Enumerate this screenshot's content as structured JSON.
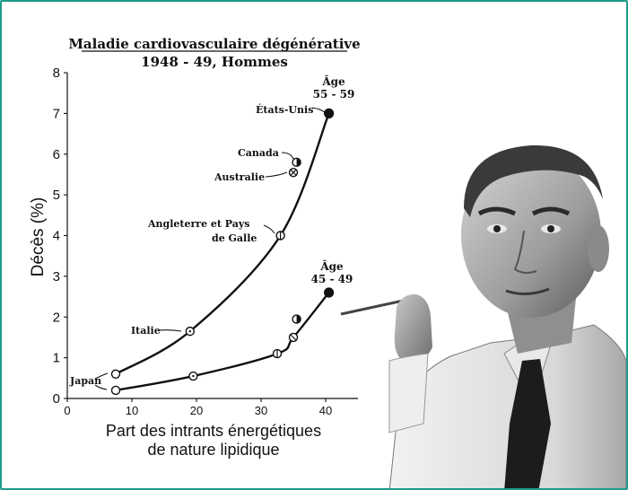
{
  "chart_data": {
    "type": "scatter",
    "title": "Maladie cardiovasculaire dégénérative",
    "subtitle": "1948 - 49, Hommes",
    "xlabel_line1": "Part des intrants énergétiques",
    "xlabel_line2": "de nature lipidique",
    "ylabel": "Décès (%)",
    "xlim": [
      0,
      45
    ],
    "ylim": [
      0,
      8
    ],
    "x_ticks": [
      "0",
      "10",
      "20",
      "30",
      "40"
    ],
    "y_ticks": [
      "0",
      "1",
      "2",
      "3",
      "4",
      "5",
      "6",
      "7",
      "8"
    ],
    "grid": false,
    "series": [
      {
        "name_line1": "Âge",
        "name_line2": "55 - 59",
        "points": [
          {
            "x": 7.5,
            "y": 0.6,
            "label": "Japan"
          },
          {
            "x": 19,
            "y": 1.65,
            "label": "Italie"
          },
          {
            "x": 33,
            "y": 4.0,
            "label_line1": "Angleterre et Pays",
            "label_line2": "de Galle"
          },
          {
            "x": 35,
            "y": 5.55,
            "label": "Australie"
          },
          {
            "x": 35.5,
            "y": 5.8,
            "label": "Canada"
          },
          {
            "x": 40.5,
            "y": 7.0,
            "label": "États-Unis"
          }
        ]
      },
      {
        "name_line1": "Âge",
        "name_line2": "45 - 49",
        "points": [
          {
            "x": 7.5,
            "y": 0.2
          },
          {
            "x": 19.5,
            "y": 0.55
          },
          {
            "x": 32.5,
            "y": 1.1
          },
          {
            "x": 35,
            "y": 1.5
          },
          {
            "x": 35.5,
            "y": 1.95
          },
          {
            "x": 40.5,
            "y": 2.6
          }
        ]
      }
    ]
  }
}
